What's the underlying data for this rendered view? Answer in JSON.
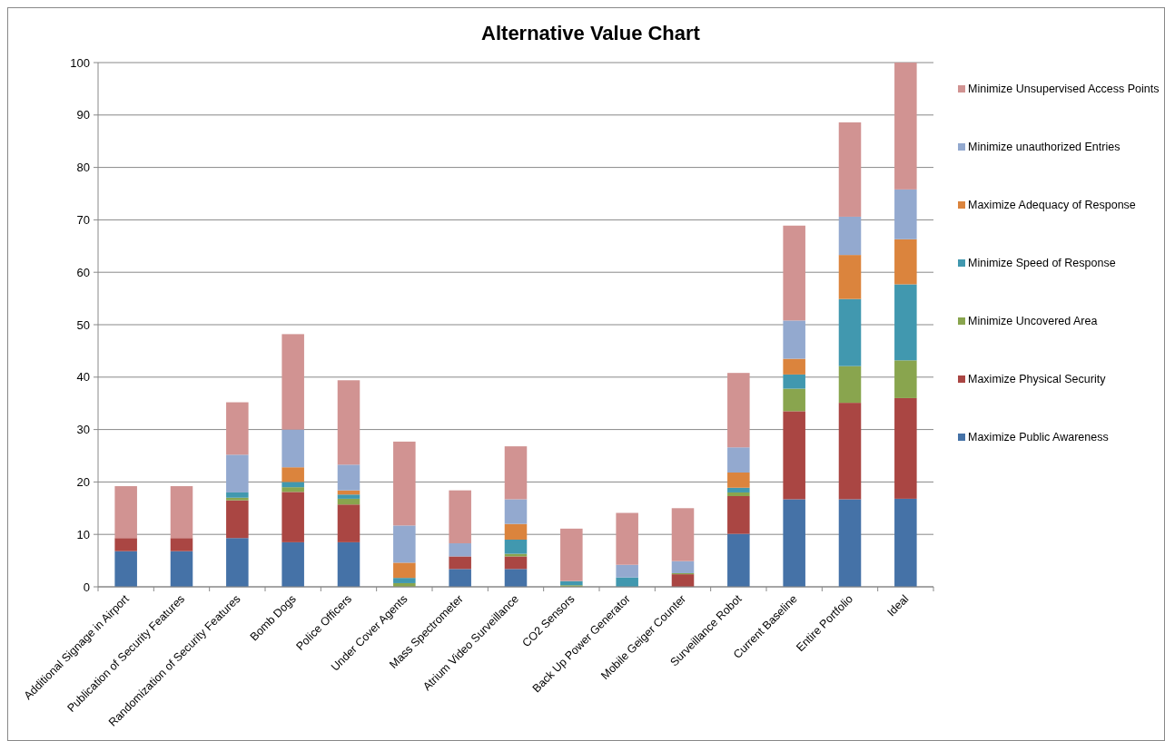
{
  "chart_data": {
    "type": "bar",
    "title": "Alternative Value Chart",
    "stacked": true,
    "grid": "y",
    "legend": "right",
    "categories": [
      "Additional Signage in Airport",
      "Publication of Security Features",
      "Randomization of Security Features",
      "Bomb Dogs",
      "Police Officers",
      "Under Cover Agents",
      "Mass Spectrometer",
      "Atrium Video Surveillance",
      "CO2 Sensors",
      "Back Up Power Generator",
      "Mobile Geiger Counter",
      "Surveillance Robot",
      "Current Baseline",
      "Entire Portfolio",
      "Ideal"
    ],
    "ylim": [
      0,
      100
    ],
    "yticks": [
      0,
      10,
      20,
      30,
      40,
      50,
      60,
      70,
      80,
      90,
      100
    ],
    "series": [
      {
        "name": "Maximize Public Awareness",
        "color": "#4572a7",
        "values": [
          6.8,
          6.8,
          9.3,
          8.5,
          8.5,
          0,
          3.4,
          3.4,
          0,
          0,
          0,
          10.1,
          16.7,
          16.7,
          16.8
        ]
      },
      {
        "name": "Maximize Physical Security",
        "color": "#aa4643",
        "values": [
          2.5,
          2.5,
          7.2,
          9.6,
          7.2,
          0,
          2.4,
          2.4,
          0,
          0,
          2.4,
          7.2,
          16.8,
          18.4,
          19.2
        ]
      },
      {
        "name": "Minimize Uncovered Area",
        "color": "#89a54e",
        "values": [
          0,
          0,
          0.5,
          0.9,
          1.1,
          0.7,
          0,
          0.5,
          0.3,
          0,
          0.2,
          0.7,
          4.3,
          7.0,
          7.2
        ]
      },
      {
        "name": "Minimize Speed of Response",
        "color": "#4198af",
        "values": [
          0,
          0,
          1.0,
          1.0,
          0.8,
          1.0,
          0,
          2.7,
          0.8,
          1.8,
          0,
          0.9,
          2.7,
          12.8,
          14.5
        ]
      },
      {
        "name": "Maximize Adequacy of Response",
        "color": "#db843d",
        "values": [
          0,
          0,
          0,
          2.8,
          0.8,
          2.9,
          0,
          3.0,
          0,
          0,
          0,
          2.9,
          3.0,
          8.4,
          8.6
        ]
      },
      {
        "name": "Minimize unauthorized Entries",
        "color": "#93a9cf",
        "values": [
          0,
          0,
          7.2,
          7.2,
          4.9,
          7.1,
          2.5,
          4.7,
          0,
          2.4,
          2.3,
          4.8,
          7.3,
          7.3,
          9.5
        ]
      },
      {
        "name": "Minimize Unsupervised Access Points",
        "color": "#d19392",
        "values": [
          9.9,
          9.9,
          10.0,
          18.2,
          16.1,
          16.0,
          10.1,
          10.1,
          10.0,
          9.9,
          10.1,
          14.2,
          18.1,
          18.0,
          24.2
        ]
      }
    ]
  }
}
